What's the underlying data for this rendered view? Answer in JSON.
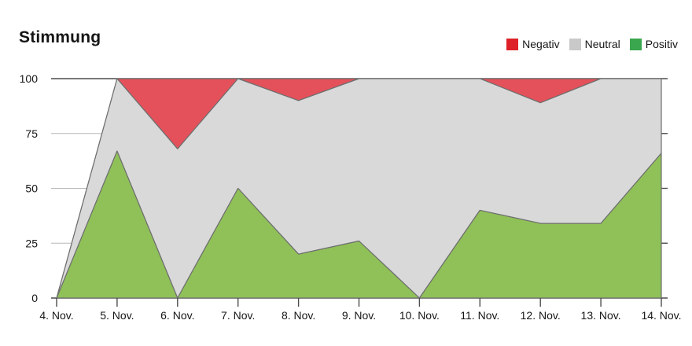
{
  "title": "Stimmung",
  "legend": [
    {
      "label": "Negativ",
      "color": "#de2128"
    },
    {
      "label": "Neutral",
      "color": "#c9c9c9"
    },
    {
      "label": "Positiv",
      "color": "#3aa64e"
    }
  ],
  "axis": {
    "y_tick_labels": [
      "0",
      "25",
      "50",
      "75",
      "100"
    ]
  },
  "chart_data": {
    "type": "area",
    "stacked": true,
    "title": "Stimmung",
    "xlabel": "",
    "ylabel": "",
    "ylim": [
      0,
      100
    ],
    "y_ticks": [
      0,
      25,
      50,
      75,
      100
    ],
    "grid": true,
    "legend_position": "top-right",
    "categories": [
      "4. Nov.",
      "5. Nov.",
      "6. Nov.",
      "7. Nov.",
      "8. Nov.",
      "9. Nov.",
      "10. Nov.",
      "11. Nov.",
      "12. Nov.",
      "13. Nov.",
      "14. Nov."
    ],
    "series": [
      {
        "name": "Positiv",
        "fill": "#8fc158",
        "values": [
          0,
          67,
          0,
          50,
          20,
          26,
          0,
          40,
          34,
          34,
          66
        ]
      },
      {
        "name": "Neutral",
        "fill": "#d9d9d9",
        "values": [
          0,
          33,
          68,
          50,
          70,
          74,
          100,
          60,
          55,
          66,
          34
        ]
      },
      {
        "name": "Negativ",
        "fill": "#e4515a",
        "values": [
          0,
          0,
          32,
          0,
          10,
          0,
          0,
          0,
          11,
          0,
          0
        ]
      }
    ],
    "colors": {
      "area_stroke": "#6f6f6f",
      "grid_light": "#b7b7b7",
      "grid_dark": "#4d4d4d",
      "text": "#161616"
    }
  }
}
